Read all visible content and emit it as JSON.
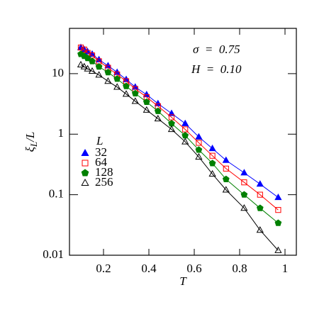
{
  "chart_data": {
    "type": "scatter",
    "xlabel": "T",
    "ylabel": [
      "ξ",
      "L",
      "/L"
    ],
    "annotations": [
      "σ  =  0.75",
      "H  =  0.10"
    ],
    "legend_title": "L",
    "legend": "left",
    "log_y": true,
    "xlim": [
      0.05,
      1.05
    ],
    "ylim": [
      0.01,
      56
    ],
    "xticks": [
      0.2,
      0.4,
      0.6,
      0.8,
      1
    ],
    "yticks": [
      0.01,
      0.1,
      1,
      10
    ],
    "x": [
      0.1,
      0.115,
      0.13,
      0.15,
      0.18,
      0.22,
      0.26,
      0.3,
      0.34,
      0.39,
      0.44,
      0.5,
      0.56,
      0.62,
      0.68,
      0.74,
      0.82,
      0.89,
      0.97
    ],
    "series": [
      {
        "name": "32",
        "color": "#0000ff",
        "marker": "triangle",
        "filled": true,
        "values": [
          27,
          25,
          23,
          21,
          17,
          13.5,
          10.5,
          8,
          6,
          4.5,
          3.2,
          2.2,
          1.5,
          0.9,
          0.58,
          0.37,
          0.23,
          0.15,
          0.09
        ]
      },
      {
        "name": "64",
        "color": "#ff0000",
        "marker": "square",
        "filled": false,
        "values": [
          27,
          25,
          22,
          20,
          16,
          12.5,
          9.7,
          7.5,
          5.6,
          4.1,
          2.9,
          1.9,
          1.2,
          0.72,
          0.44,
          0.27,
          0.16,
          0.1,
          0.056
        ]
      },
      {
        "name": "128",
        "color": "#008000",
        "marker": "pentagon",
        "filled": true,
        "values": [
          21,
          19.5,
          18,
          16,
          13,
          10.5,
          8.2,
          6.2,
          4.7,
          3.4,
          2.4,
          1.5,
          0.95,
          0.55,
          0.33,
          0.18,
          0.1,
          0.06,
          0.034
        ]
      },
      {
        "name": "256",
        "color": "#000000",
        "marker": "triangle",
        "filled": false,
        "values": [
          14,
          13,
          12,
          11,
          9.5,
          7.5,
          6,
          4.6,
          3.5,
          2.5,
          1.8,
          1.2,
          0.75,
          0.42,
          0.22,
          0.12,
          0.06,
          0.026,
          0.012
        ]
      }
    ]
  }
}
